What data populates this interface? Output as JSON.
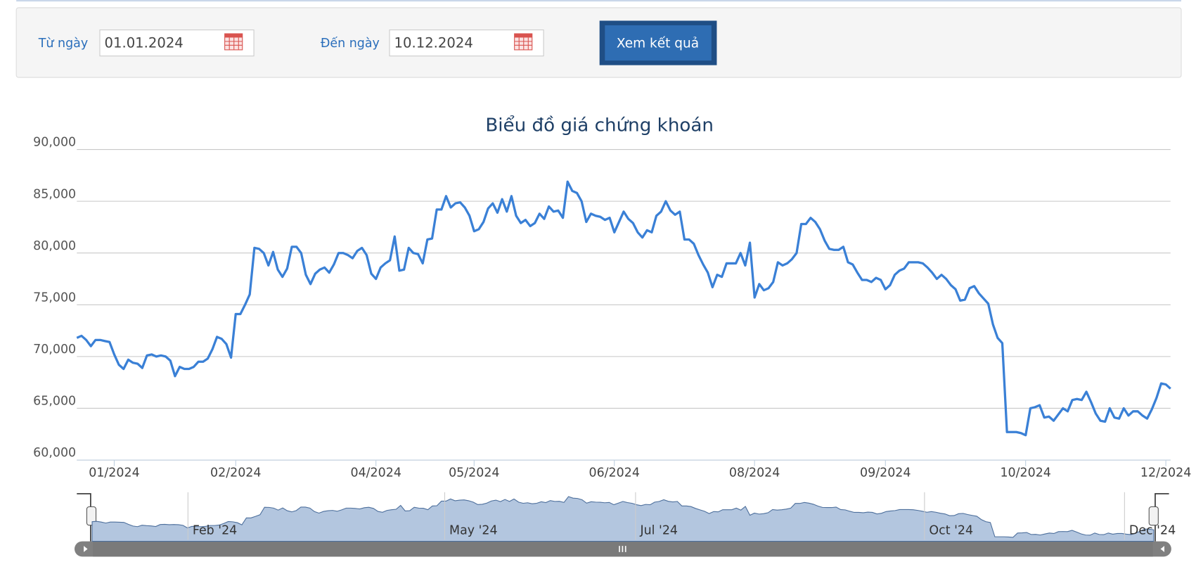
{
  "form": {
    "from_label": "Từ ngày",
    "from_value": "01.01.2024",
    "to_label": "Đến ngày",
    "to_value": "10.12.2024",
    "button": "Xem kết quả"
  },
  "chart_data": {
    "type": "line",
    "title": "Biểu đồ giá chứng khoán",
    "color": "#3a80d6",
    "grid": true,
    "ylim": [
      60000,
      90000
    ],
    "yticks": [
      {
        "value": 60000,
        "label": "60,000"
      },
      {
        "value": 65000,
        "label": "65,000"
      },
      {
        "value": 70000,
        "label": "70,000"
      },
      {
        "value": 75000,
        "label": "75,000"
      },
      {
        "value": 80000,
        "label": "80,000"
      },
      {
        "value": 85000,
        "label": "85,000"
      },
      {
        "value": 90000,
        "label": "90,000"
      }
    ],
    "xticks": [
      {
        "value": 8,
        "label": "01/2024"
      },
      {
        "value": 34,
        "label": "02/2024"
      },
      {
        "value": 64,
        "label": "04/2024"
      },
      {
        "value": 85,
        "label": "05/2024"
      },
      {
        "value": 115,
        "label": "06/2024"
      },
      {
        "value": 145,
        "label": "08/2024"
      },
      {
        "value": 173,
        "label": "09/2024"
      },
      {
        "value": 203,
        "label": "10/2024"
      },
      {
        "value": 233,
        "label": "12/2024"
      }
    ],
    "values": [
      71800,
      72000,
      71600,
      71000,
      71600,
      71600,
      71500,
      71400,
      70200,
      69200,
      68800,
      69700,
      69400,
      69300,
      68900,
      70100,
      70200,
      70000,
      70100,
      70000,
      69600,
      68100,
      69000,
      68800,
      68800,
      69000,
      69500,
      69500,
      69800,
      70700,
      71900,
      71700,
      71200,
      69900,
      74100,
      74100,
      75000,
      76000,
      80500,
      80400,
      80000,
      78800,
      80100,
      78400,
      77700,
      78500,
      80600,
      80600,
      80000,
      77900,
      77000,
      78000,
      78400,
      78600,
      78100,
      78900,
      80000,
      80000,
      79800,
      79500,
      80200,
      80500,
      79800,
      78000,
      77500,
      78600,
      79000,
      79300,
      81600,
      78300,
      78400,
      80500,
      80000,
      79900,
      79000,
      81300,
      81400,
      84200,
      84200,
      85500,
      84400,
      84800,
      84900,
      84400,
      83600,
      82100,
      82300,
      83000,
      84300,
      84800,
      83900,
      85200,
      84000,
      85500,
      83600,
      82900,
      83200,
      82600,
      82900,
      83800,
      83300,
      84500,
      84000,
      84100,
      83400,
      86900,
      86000,
      85800,
      85000,
      83000,
      83800,
      83600,
      83500,
      83200,
      83400,
      82000,
      83000,
      84000,
      83300,
      82900,
      82000,
      81500,
      82200,
      82000,
      83600,
      84000,
      85000,
      84100,
      83700,
      84000,
      81300,
      81300,
      80900,
      79800,
      78900,
      78100,
      76700,
      77900,
      77700,
      79000,
      79000,
      79000,
      80000,
      78800,
      81000,
      75700,
      77000,
      76400,
      76600,
      77200,
      79100,
      78800,
      79000,
      79400,
      80000,
      82800,
      82800,
      83400,
      83000,
      82300,
      81200,
      80400,
      80300,
      80300,
      80600,
      79100,
      78900,
      78100,
      77400,
      77400,
      77200,
      77600,
      77400,
      76500,
      76900,
      77900,
      78300,
      78500,
      79100,
      79100,
      79100,
      79000,
      78600,
      78100,
      77500,
      77900,
      77500,
      76900,
      76500,
      75400,
      75500,
      76600,
      76800,
      76100,
      75600,
      75100,
      73100,
      71800,
      71300,
      62700,
      62700,
      62700,
      62600,
      62400,
      65000,
      65100,
      65300,
      64100,
      64200,
      63800,
      64400,
      65000,
      64700,
      65800,
      65900,
      65800,
      66600,
      65600,
      64500,
      63800,
      63700,
      65000,
      64100,
      64000,
      65000,
      64300,
      64700,
      64700,
      64300,
      64000,
      64900,
      66000,
      67400,
      67300,
      66900
    ],
    "navigator": {
      "labels": [
        "Feb '24",
        "May '24",
        "Jul '24",
        "Oct '24",
        "Dec '24"
      ]
    }
  }
}
